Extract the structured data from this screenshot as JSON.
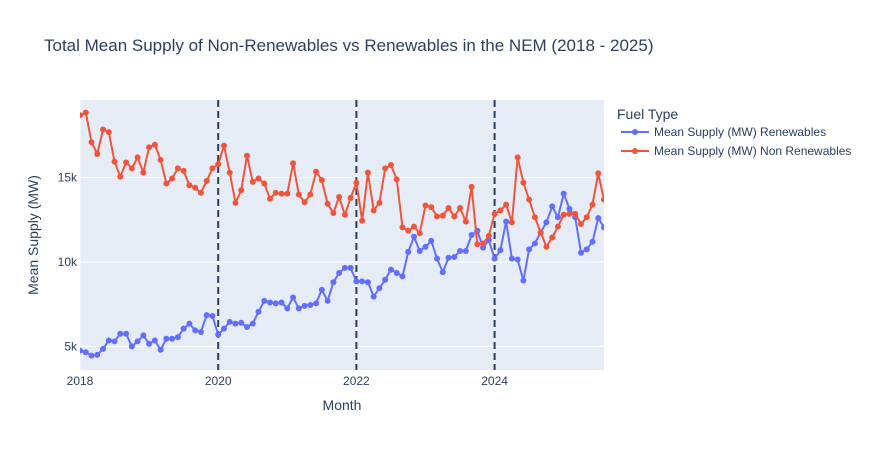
{
  "chart_data": {
    "type": "line",
    "title": "Total Mean Supply of Non-Renewables vs Renewables in the NEM (2018 - 2025)",
    "xlabel": "Month",
    "ylabel": "Mean Supply (MW)",
    "xlim": [
      "2018-01",
      "2025-08"
    ],
    "ylim": [
      3600,
      19600
    ],
    "x_ticks": [
      {
        "value": "2018-01",
        "label": "2018"
      },
      {
        "value": "2020-01",
        "label": "2020"
      },
      {
        "value": "2022-01",
        "label": "2022"
      },
      {
        "value": "2024-01",
        "label": "2024"
      }
    ],
    "y_ticks": [
      {
        "value": 5000,
        "label": "5k"
      },
      {
        "value": 10000,
        "label": "10k"
      },
      {
        "value": 15000,
        "label": "15k"
      }
    ],
    "vlines": [
      "2020-01",
      "2022-01",
      "2024-01"
    ],
    "grid": true,
    "legend": {
      "title": "Fuel Type",
      "position": "right"
    },
    "start_month": "2018-01",
    "series": [
      {
        "name": "Mean Supply (MW) Renewables",
        "color": "#636efa",
        "values": [
          4750,
          4650,
          4450,
          4500,
          4850,
          5350,
          5300,
          5750,
          5750,
          5000,
          5300,
          5650,
          5150,
          5350,
          4800,
          5450,
          5450,
          5550,
          6050,
          6350,
          5950,
          5850,
          6850,
          6800,
          5700,
          6050,
          6450,
          6350,
          6400,
          6150,
          6350,
          7050,
          7700,
          7600,
          7550,
          7600,
          7250,
          7900,
          7250,
          7400,
          7450,
          7550,
          8350,
          7700,
          8800,
          9350,
          9650,
          9650,
          8850,
          8850,
          8800,
          7950,
          8450,
          8950,
          9550,
          9350,
          9150,
          10600,
          11500,
          10650,
          10900,
          11250,
          10200,
          9400,
          10250,
          10300,
          10650,
          10650,
          11600,
          11850,
          10850,
          11300,
          10200,
          10700,
          12400,
          10200,
          10150,
          8900,
          10750,
          11100,
          11750,
          12350,
          13300,
          12650,
          14050,
          13150,
          12650,
          10550,
          10750,
          11200,
          12600,
          12050
        ]
      },
      {
        "name": "Mean Supply (MW) Non Renewables",
        "color": "#ef553b",
        "values": [
          18700,
          18850,
          17100,
          16400,
          17850,
          17700,
          15950,
          15050,
          15900,
          15550,
          16200,
          15300,
          16800,
          16950,
          16050,
          14650,
          14950,
          15550,
          15400,
          14550,
          14400,
          14100,
          14800,
          15550,
          15800,
          16900,
          15300,
          13500,
          14250,
          16300,
          14750,
          14950,
          14650,
          13750,
          14100,
          14050,
          14050,
          15850,
          14000,
          13550,
          14000,
          15350,
          14850,
          13450,
          12900,
          13850,
          12800,
          13800,
          14700,
          12450,
          15300,
          13050,
          13500,
          15550,
          15750,
          14900,
          12050,
          11850,
          12100,
          11700,
          13350,
          13250,
          12700,
          12750,
          13200,
          12700,
          13200,
          12400,
          14450,
          11050,
          11100,
          11550,
          12850,
          13050,
          13400,
          12350,
          16200,
          14700,
          13700,
          12650,
          11750,
          10900,
          11450,
          12100,
          12800,
          12850,
          12850,
          12250,
          12650,
          13400,
          15250,
          13700
        ]
      }
    ]
  }
}
